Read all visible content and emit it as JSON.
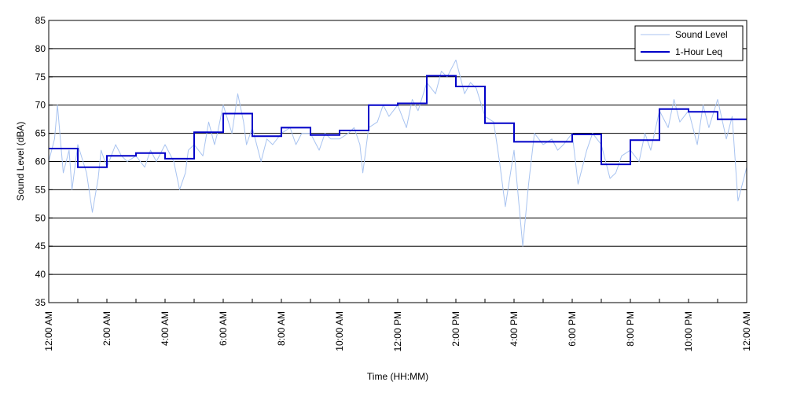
{
  "chart_data": {
    "type": "line",
    "xlabel": "Time (HH:MM)",
    "ylabel": "Sound Level (dBA)",
    "ylim": [
      35,
      85
    ],
    "xlim_hours": [
      0,
      24
    ],
    "y_ticks": [
      35,
      40,
      45,
      50,
      55,
      60,
      65,
      70,
      75,
      80,
      85
    ],
    "x_tick_hours": [
      0,
      2,
      4,
      6,
      8,
      10,
      12,
      14,
      16,
      18,
      20,
      22,
      24
    ],
    "x_tick_labels": [
      "12:00 AM",
      "2:00 AM",
      "4:00 AM",
      "6:00 AM",
      "8:00 AM",
      "10:00 AM",
      "12:00 PM",
      "2:00 PM",
      "4:00 PM",
      "6:00 PM",
      "8:00 PM",
      "10:00 PM",
      "12:00 AM"
    ],
    "minor_tick_hours": [
      1,
      3,
      5,
      7,
      9,
      11,
      13,
      15,
      17,
      19,
      21,
      23
    ],
    "grid": "horizontal",
    "legend_position": "top-right",
    "legend": [
      "Sound Level",
      "1-Hour Leq"
    ],
    "series": [
      {
        "name": "Sound Level",
        "color": "#a8c3f0",
        "hours": [
          0,
          0.2,
          0.3,
          0.5,
          0.7,
          0.8,
          1.0,
          1.3,
          1.5,
          1.7,
          1.8,
          2.0,
          2.3,
          2.5,
          2.7,
          3.0,
          3.3,
          3.5,
          3.7,
          4.0,
          4.3,
          4.5,
          4.7,
          4.8,
          5.0,
          5.3,
          5.5,
          5.7,
          5.8,
          6.0,
          6.3,
          6.5,
          6.7,
          6.8,
          7.0,
          7.3,
          7.5,
          7.7,
          8.0,
          8.3,
          8.5,
          8.7,
          9.0,
          9.3,
          9.5,
          9.7,
          10.0,
          10.3,
          10.5,
          10.7,
          10.8,
          11.0,
          11.3,
          11.5,
          11.7,
          12.0,
          12.3,
          12.5,
          12.7,
          13.0,
          13.3,
          13.5,
          13.7,
          14.0,
          14.3,
          14.5,
          14.7,
          15.0,
          15.3,
          15.5,
          15.7,
          16.0,
          16.3,
          16.5,
          16.7,
          17.0,
          17.3,
          17.5,
          17.7,
          18.0,
          18.2,
          18.5,
          18.7,
          19.0,
          19.3,
          19.5,
          19.7,
          20.0,
          20.3,
          20.5,
          20.7,
          21.0,
          21.3,
          21.5,
          21.7,
          22.0,
          22.3,
          22.5,
          22.7,
          23.0,
          23.3,
          23.5,
          23.7,
          24.0
        ],
        "values": [
          60,
          64,
          70,
          58,
          62,
          55,
          63,
          58,
          51,
          57,
          62,
          59,
          63,
          61,
          60,
          61,
          59,
          62,
          60,
          63,
          60,
          55,
          58,
          62,
          63,
          61,
          67,
          63,
          65,
          70,
          65,
          72,
          67,
          63,
          66,
          60,
          64,
          63,
          65,
          66,
          63,
          65,
          65,
          62,
          65,
          64,
          64,
          65,
          66,
          63,
          58,
          66,
          67,
          70,
          68,
          70,
          66,
          71,
          69,
          74,
          72,
          76,
          75,
          78,
          72,
          74,
          73,
          68,
          67,
          60,
          52,
          62,
          45,
          56,
          65,
          63,
          64,
          62,
          63,
          65,
          56,
          62,
          65,
          63,
          57,
          58,
          61,
          62,
          60,
          65,
          62,
          69,
          66,
          71,
          67,
          69,
          63,
          70,
          66,
          71,
          64,
          68,
          53,
          59
        ]
      },
      {
        "name": "1-Hour Leq",
        "color": "#0000c8",
        "hour_start": [
          0,
          1,
          2,
          3,
          4,
          5,
          6,
          7,
          8,
          9,
          10,
          11,
          12,
          13,
          14,
          15,
          16,
          17,
          18,
          19,
          20,
          21,
          22,
          23
        ],
        "values": [
          62.3,
          59.0,
          61.0,
          61.5,
          60.5,
          65.2,
          68.5,
          64.5,
          66.0,
          64.7,
          65.5,
          70.0,
          70.3,
          75.2,
          73.3,
          66.8,
          63.5,
          63.5,
          64.8,
          59.5,
          63.8,
          69.3,
          68.8,
          67.5
        ]
      }
    ]
  }
}
